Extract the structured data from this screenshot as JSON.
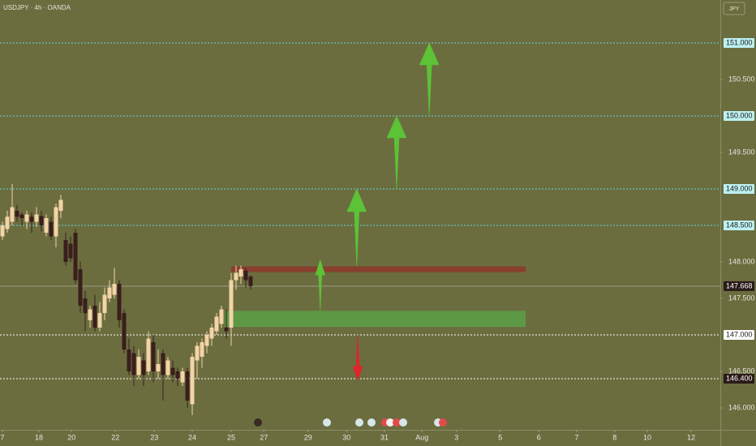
{
  "chart_data": {
    "type": "candlestick",
    "title": "USDJPY · 4h · OANDA",
    "currency": "JPY",
    "bull_color": "#f3d4a6",
    "bear_color": "#3a1e1c",
    "open": [
      148.35,
      148.45,
      148.55,
      148.7,
      148.65,
      148.55,
      148.62,
      148.55,
      148.63,
      148.4,
      148.55,
      148.35,
      148.7,
      148.3,
      148.25,
      148.4,
      147.9,
      147.5,
      147.2,
      147.4,
      147.1,
      147.3,
      147.5,
      147.55,
      147.7,
      147.3,
      146.8,
      146.75,
      146.45,
      146.65,
      146.5,
      146.9,
      146.5,
      146.75,
      146.45,
      146.55,
      146.5,
      146.35,
      146.5,
      146.05,
      146.65,
      146.7,
      146.85,
      146.95,
      147.05,
      147.15,
      147.1,
      147.1,
      147.75,
      147.8,
      147.88,
      147.8
    ],
    "high": [
      148.55,
      148.7,
      149.07,
      148.78,
      148.68,
      148.7,
      148.68,
      148.75,
      148.7,
      148.65,
      148.62,
      148.8,
      148.92,
      148.4,
      148.35,
      148.45,
      148.0,
      147.6,
      147.4,
      147.55,
      147.45,
      147.65,
      147.75,
      147.92,
      147.75,
      147.35,
      146.95,
      146.85,
      146.8,
      146.75,
      147.05,
      147.0,
      146.8,
      146.8,
      146.7,
      146.65,
      146.55,
      146.55,
      146.55,
      146.75,
      146.9,
      146.95,
      147.05,
      147.15,
      147.3,
      147.4,
      147.35,
      147.85,
      147.95,
      147.95,
      147.92,
      147.82
    ],
    "low": [
      148.3,
      148.4,
      148.5,
      148.55,
      148.5,
      148.45,
      148.4,
      148.48,
      148.42,
      148.35,
      148.3,
      148.2,
      148.6,
      147.95,
      148.0,
      147.7,
      147.3,
      147.05,
      147.1,
      147.05,
      147.05,
      147.2,
      147.45,
      147.5,
      147.1,
      146.75,
      146.45,
      146.3,
      146.4,
      146.3,
      146.45,
      146.35,
      146.4,
      146.1,
      146.4,
      146.35,
      146.3,
      146.3,
      146.0,
      145.9,
      146.4,
      146.55,
      146.75,
      146.85,
      147.0,
      147.1,
      146.95,
      146.85,
      147.62,
      147.7,
      147.65,
      147.62
    ],
    "close": [
      148.5,
      148.62,
      148.75,
      148.62,
      148.6,
      148.65,
      148.55,
      148.65,
      148.5,
      148.6,
      148.35,
      148.75,
      148.85,
      148.0,
      148.05,
      147.75,
      147.4,
      147.3,
      147.35,
      147.1,
      147.3,
      147.55,
      147.65,
      147.7,
      147.2,
      146.8,
      146.5,
      146.45,
      146.7,
      146.45,
      146.95,
      146.5,
      146.6,
      146.45,
      146.65,
      146.45,
      146.4,
      146.5,
      146.1,
      146.7,
      146.85,
      146.9,
      147.0,
      147.1,
      147.25,
      147.35,
      147.05,
      147.75,
      147.85,
      147.9,
      147.75,
      147.668
    ],
    "xlim": [
      -0.5,
      147.5
    ],
    "xticks": [
      {
        "value": 0,
        "label": "7"
      },
      {
        "value": 7.5,
        "label": "18"
      },
      {
        "value": 14.2,
        "label": "20"
      },
      {
        "value": 23.2,
        "label": "22"
      },
      {
        "value": 31.2,
        "label": "23"
      },
      {
        "value": 39,
        "label": "24"
      },
      {
        "value": 47,
        "label": "25"
      },
      {
        "value": 53.7,
        "label": "27"
      },
      {
        "value": 62.8,
        "label": "29"
      },
      {
        "value": 70.7,
        "label": "30"
      },
      {
        "value": 78.5,
        "label": "31"
      },
      {
        "value": 86.2,
        "label": "Aug"
      },
      {
        "value": 93.3,
        "label": "3"
      },
      {
        "value": 102.3,
        "label": "5"
      },
      {
        "value": 110.2,
        "label": "6"
      },
      {
        "value": 118,
        "label": "7"
      },
      {
        "value": 125.8,
        "label": "8"
      },
      {
        "value": 132.5,
        "label": "10"
      },
      {
        "value": 141.5,
        "label": "12"
      }
    ],
    "ylim": [
      145.7,
      151.589
    ],
    "yticks": [
      {
        "value": 146,
        "label": "146.000"
      },
      {
        "value": 146.5,
        "label": "146.500"
      },
      {
        "value": 147.5,
        "label": "147.500"
      },
      {
        "value": 148,
        "label": "148.000"
      },
      {
        "value": 149.5,
        "label": "149.500"
      },
      {
        "value": 150.5,
        "label": "150.500"
      }
    ],
    "levels": [
      {
        "value": 151,
        "label": "151.000",
        "color": "#63d6d8"
      },
      {
        "value": 150,
        "label": "150.000",
        "color": "#63d6d8"
      },
      {
        "value": 149,
        "label": "149.000",
        "color": "#63d6d8"
      },
      {
        "value": 148.5,
        "label": "148.500",
        "color": "#63d6d8"
      },
      {
        "value": 147,
        "label": "147.000",
        "color": "#ffffff"
      },
      {
        "value": 146.4,
        "label": "146.400",
        "color": "#ffffff"
      }
    ],
    "last_price": {
      "value": 147.668,
      "label": "147.668"
    },
    "zones": [
      {
        "from": 147.86,
        "to": 147.94,
        "x0": 47,
        "x1": 107.5,
        "color": "#8c3b2c"
      },
      {
        "from": 147.11,
        "to": 147.33,
        "x0": 45.7,
        "x1": 107.5,
        "color": "#5c9c48"
      }
    ],
    "arrows": [
      {
        "x": 65.3,
        "from": 147.33,
        "to": 148.03,
        "color": "#5cc236"
      },
      {
        "x": 72.8,
        "from": 147.94,
        "to": 149.0,
        "color": "#5cc236"
      },
      {
        "x": 81,
        "from": 149.0,
        "to": 150.0,
        "color": "#5cc236"
      },
      {
        "x": 87.7,
        "from": 150.0,
        "to": 151.0,
        "color": "#5cc236"
      },
      {
        "x": 73,
        "from": 147.0,
        "to": 146.38,
        "color": "#e0242a"
      }
    ]
  }
}
